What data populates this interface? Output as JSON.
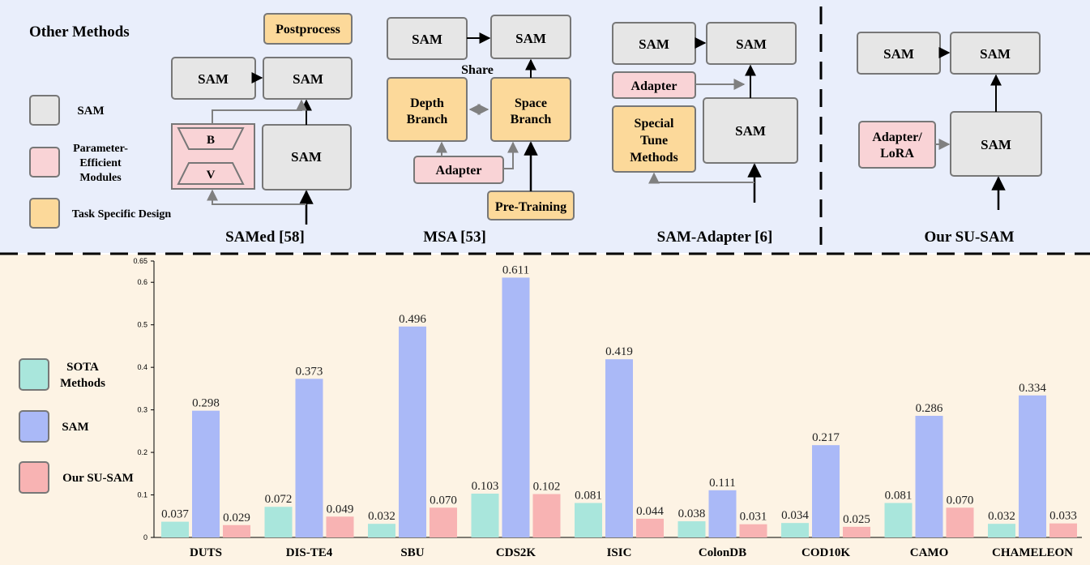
{
  "top": {
    "heading": "Other Methods",
    "legend": [
      {
        "key": "sam",
        "lines": [
          "SAM"
        ],
        "color": "#e6e6e6"
      },
      {
        "key": "pem",
        "lines": [
          "Parameter-",
          "Efficient",
          "Modules"
        ],
        "color": "#f9d3d6"
      },
      {
        "key": "task",
        "lines": [
          "Task Specific Design"
        ],
        "color": "#fcd99a"
      }
    ],
    "samed": {
      "title": "SAMed [58]",
      "postprocess": "Postprocess",
      "sam_a": "SAM",
      "sam_b": "SAM",
      "sam_c": "SAM",
      "b_label": "B",
      "v_label": "V"
    },
    "msa": {
      "title": "MSA [53]",
      "sam_a": "SAM",
      "sam_b": "SAM",
      "share": "Share",
      "depth": [
        "Depth",
        "Branch"
      ],
      "space": [
        "Space",
        "Branch"
      ],
      "adapter": "Adapter",
      "pretraining": "Pre-Training"
    },
    "samadapter": {
      "title": "SAM-Adapter [6]",
      "sam_a": "SAM",
      "sam_b": "SAM",
      "sam_c": "SAM",
      "adapter": "Adapter",
      "special": [
        "Special",
        "Tune",
        "Methods"
      ]
    },
    "susam": {
      "title": "Our SU-SAM",
      "sam_a": "SAM",
      "sam_b": "SAM",
      "sam_c": "SAM",
      "adapter": [
        "Adapter/",
        "LoRA"
      ]
    }
  },
  "colors": {
    "sam_box": "#e6e6e6",
    "pem_box": "#f9d3d6",
    "task_box": "#fcd99a",
    "sota": "#a9e6dc",
    "sam_bar": "#aab9f7",
    "susam_bar": "#f8b3b3"
  },
  "chart_data": {
    "type": "bar",
    "categories": [
      "DUTS",
      "DIS-TE4",
      "SBU",
      "CDS2K",
      "ISIC",
      "ColonDB",
      "COD10K",
      "CAMO",
      "CHAMELEON"
    ],
    "series": [
      {
        "name": "SOTA Methods",
        "values": [
          0.037,
          0.072,
          0.032,
          0.103,
          0.081,
          0.038,
          0.034,
          0.081,
          0.032
        ],
        "labels": [
          "0.037",
          "0.072",
          "0.032",
          "0.103",
          "0.081",
          "0.038",
          "0.034",
          "0.081",
          "0.032"
        ]
      },
      {
        "name": "SAM",
        "values": [
          0.298,
          0.373,
          0.496,
          0.611,
          0.419,
          0.111,
          0.217,
          0.286,
          0.334
        ],
        "labels": [
          "0.298",
          "0.373",
          "0.496",
          "0.611",
          "0.419",
          "0.111",
          "0.217",
          "0.286",
          "0.334"
        ]
      },
      {
        "name": "Our SU-SAM",
        "values": [
          0.029,
          0.049,
          0.07,
          0.102,
          0.044,
          0.031,
          0.025,
          0.07,
          0.033
        ],
        "labels": [
          "0.029",
          "0.049",
          "0.070",
          "0.102",
          "0.044",
          "0.031",
          "0.025",
          "0.070",
          "0.033"
        ]
      }
    ],
    "legend": [
      {
        "lines": [
          "SOTA",
          "Methods"
        ]
      },
      {
        "lines": [
          "SAM"
        ]
      },
      {
        "lines": [
          "Our SU-SAM"
        ]
      }
    ],
    "yticks": [
      "0",
      "0.1",
      "0.2",
      "0.3",
      "0.4",
      "0.5",
      "0.6",
      "0.65"
    ],
    "ytick_values": [
      0,
      0.1,
      0.2,
      0.3,
      0.4,
      0.5,
      0.6,
      0.65
    ],
    "ylim": [
      0,
      0.65
    ]
  }
}
